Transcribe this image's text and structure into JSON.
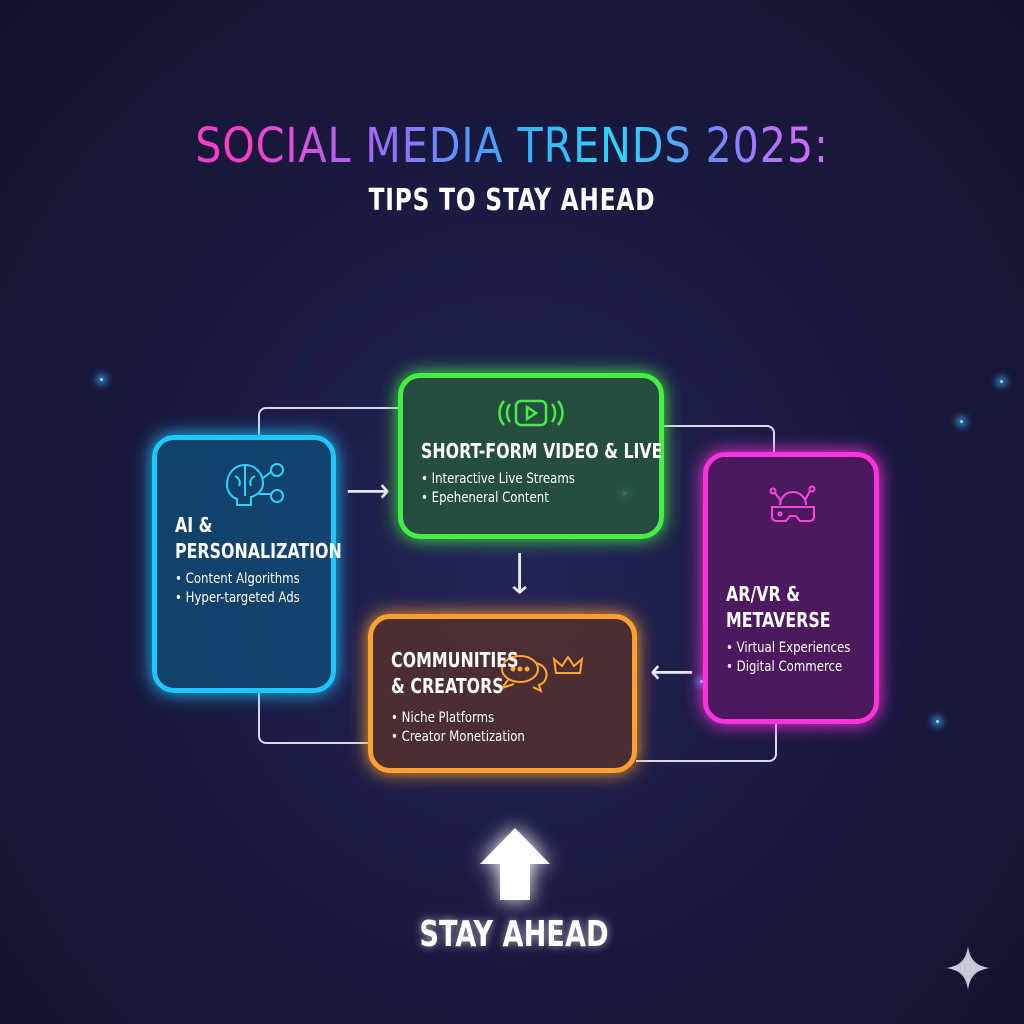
{
  "header": {
    "title": "SOCIAL MEDIA TRENDS 2025:",
    "subtitle": "TIPS TO STAY AHEAD"
  },
  "cards": [
    {
      "title_lines": [
        "AI &",
        "PERSONALIZATION"
      ],
      "bullets": [
        "Content Algorithms",
        "Hyper-targeted Ads"
      ],
      "icon": "brain-network-icon",
      "color": "#1ec8ff"
    },
    {
      "title_lines": [
        "SHORT-FORM VIDEO & LIVE"
      ],
      "bullets": [
        "Interactive Live Streams",
        "Epeheneral Content"
      ],
      "icon": "live-video-icon",
      "color": "#44ee44"
    },
    {
      "title_lines": [
        "AR/VR &",
        "METAVERSE"
      ],
      "bullets": [
        "Virtual Experiences",
        "Digital Commerce"
      ],
      "icon": "vr-headset-icon",
      "color": "#ff33dd"
    },
    {
      "title_lines": [
        "COMMUNITIES",
        "& CREATORS"
      ],
      "bullets": [
        "Niche Platforms",
        "Creator Monetization"
      ],
      "icon": "chat-crown-icon",
      "color": "#ffa030"
    }
  ],
  "footer": {
    "cta": "STAY AHEAD",
    "icon": "up-arrow-icon"
  },
  "watermark": {
    "icon": "sparkle-icon"
  }
}
